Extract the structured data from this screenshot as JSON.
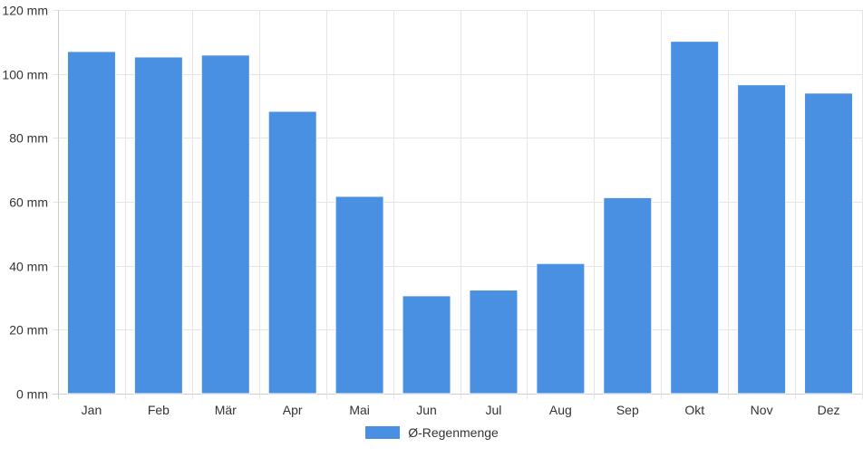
{
  "colors": {
    "bar": "#4a90e2",
    "grid": "#e5e5e5",
    "axis": "#cccccc",
    "text": "#333333"
  },
  "chart_data": {
    "type": "bar",
    "title": "",
    "xlabel": "",
    "ylabel": "",
    "unit": "mm",
    "ylim": [
      0,
      120
    ],
    "yticks": [
      0,
      20,
      40,
      60,
      80,
      100,
      120
    ],
    "ytick_labels": [
      "0 mm",
      "20 mm",
      "40 mm",
      "60 mm",
      "80 mm",
      "100 mm",
      "120 mm"
    ],
    "categories": [
      "Jan",
      "Feb",
      "Mär",
      "Apr",
      "Mai",
      "Jun",
      "Jul",
      "Aug",
      "Sep",
      "Okt",
      "Nov",
      "Dez"
    ],
    "series": [
      {
        "name": "Ø-Regenmenge",
        "values": [
          107,
          105.3,
          105.9,
          88.3,
          61.7,
          30.6,
          32.4,
          40.7,
          61.3,
          110.2,
          96.6,
          94
        ]
      }
    ],
    "grid": true,
    "legend_position": "bottom-center"
  }
}
